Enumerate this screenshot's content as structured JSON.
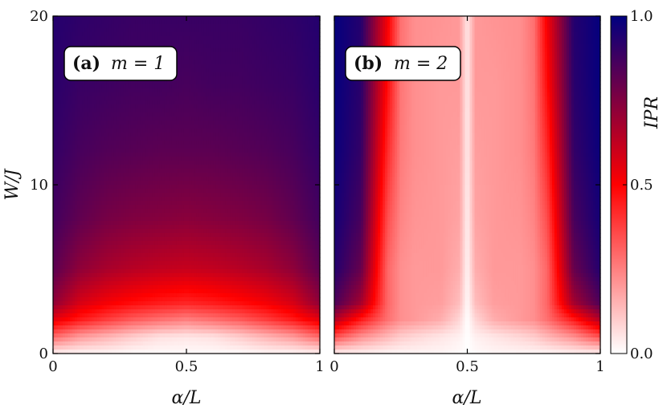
{
  "chart_data": [
    {
      "type": "heatmap",
      "panel_label": "(a)",
      "panel_title": "m = 1",
      "xlabel": "α/L",
      "ylabel": "W/J",
      "xlim": [
        0,
        1
      ],
      "ylim": [
        0,
        20
      ],
      "x_ticks": [
        "0",
        "0.5",
        "1"
      ],
      "y_ticks": [
        "0",
        "10",
        "20"
      ],
      "grid": false,
      "x": [
        0,
        0.1,
        0.2,
        0.3,
        0.4,
        0.5,
        0.6,
        0.7,
        0.8,
        0.9,
        1.0
      ],
      "y": [
        0,
        1,
        2,
        3,
        5,
        8,
        12,
        16,
        20
      ],
      "z": [
        [
          0.03,
          0.02,
          0.02,
          0.01,
          0.01,
          0.01,
          0.01,
          0.01,
          0.02,
          0.02,
          0.03
        ],
        [
          0.3,
          0.2,
          0.15,
          0.1,
          0.06,
          0.05,
          0.06,
          0.1,
          0.15,
          0.2,
          0.3
        ],
        [
          0.55,
          0.45,
          0.38,
          0.32,
          0.28,
          0.25,
          0.28,
          0.32,
          0.38,
          0.45,
          0.55
        ],
        [
          0.72,
          0.58,
          0.52,
          0.48,
          0.45,
          0.43,
          0.45,
          0.48,
          0.52,
          0.58,
          0.72
        ],
        [
          0.82,
          0.72,
          0.67,
          0.64,
          0.62,
          0.61,
          0.62,
          0.64,
          0.67,
          0.72,
          0.82
        ],
        [
          0.87,
          0.81,
          0.77,
          0.75,
          0.74,
          0.73,
          0.74,
          0.75,
          0.77,
          0.81,
          0.87
        ],
        [
          0.9,
          0.86,
          0.84,
          0.83,
          0.82,
          0.82,
          0.82,
          0.83,
          0.84,
          0.86,
          0.9
        ],
        [
          0.92,
          0.89,
          0.88,
          0.87,
          0.87,
          0.86,
          0.87,
          0.87,
          0.88,
          0.89,
          0.92
        ],
        [
          0.93,
          0.91,
          0.9,
          0.89,
          0.89,
          0.89,
          0.89,
          0.89,
          0.9,
          0.91,
          0.93
        ]
      ]
    },
    {
      "type": "heatmap",
      "panel_label": "(b)",
      "panel_title": "m = 2",
      "xlabel": "α/L",
      "ylabel": "W/J",
      "xlim": [
        0,
        1
      ],
      "ylim": [
        0,
        20
      ],
      "x_ticks": [
        "0",
        "0.5",
        "1"
      ],
      "y_ticks": [
        "0",
        "10",
        "20"
      ],
      "grid": false,
      "x": [
        0,
        0.1,
        0.2,
        0.25,
        0.3,
        0.4,
        0.47,
        0.5,
        0.53,
        0.6,
        0.7,
        0.75,
        0.8,
        0.9,
        1.0
      ],
      "y": [
        0,
        1,
        2,
        3,
        5,
        8,
        12,
        16,
        20
      ],
      "z": [
        [
          0.03,
          0.03,
          0.02,
          0.02,
          0.02,
          0.02,
          0.01,
          0.0,
          0.01,
          0.02,
          0.02,
          0.02,
          0.02,
          0.03,
          0.03
        ],
        [
          0.35,
          0.22,
          0.14,
          0.1,
          0.08,
          0.05,
          0.03,
          0.0,
          0.03,
          0.05,
          0.08,
          0.1,
          0.14,
          0.22,
          0.35
        ],
        [
          0.65,
          0.45,
          0.28,
          0.22,
          0.2,
          0.16,
          0.08,
          0.0,
          0.08,
          0.16,
          0.2,
          0.22,
          0.28,
          0.45,
          0.65
        ],
        [
          0.85,
          0.68,
          0.3,
          0.22,
          0.2,
          0.19,
          0.13,
          0.01,
          0.13,
          0.19,
          0.2,
          0.22,
          0.3,
          0.68,
          0.85
        ],
        [
          0.93,
          0.8,
          0.3,
          0.22,
          0.2,
          0.2,
          0.16,
          0.02,
          0.16,
          0.2,
          0.2,
          0.22,
          0.3,
          0.8,
          0.93
        ],
        [
          0.96,
          0.86,
          0.35,
          0.24,
          0.21,
          0.2,
          0.18,
          0.03,
          0.18,
          0.2,
          0.21,
          0.24,
          0.35,
          0.86,
          0.96
        ],
        [
          0.98,
          0.9,
          0.42,
          0.26,
          0.22,
          0.2,
          0.19,
          0.04,
          0.19,
          0.2,
          0.22,
          0.26,
          0.42,
          0.9,
          0.98
        ],
        [
          0.99,
          0.92,
          0.48,
          0.27,
          0.22,
          0.2,
          0.2,
          0.04,
          0.2,
          0.2,
          0.22,
          0.27,
          0.48,
          0.92,
          0.99
        ],
        [
          0.99,
          0.93,
          0.52,
          0.28,
          0.22,
          0.21,
          0.2,
          0.05,
          0.2,
          0.21,
          0.22,
          0.28,
          0.52,
          0.93,
          0.99
        ]
      ]
    }
  ],
  "colorbar": {
    "label": "IPR",
    "min": 0.0,
    "max": 1.0,
    "ticks": [
      "0.0",
      "0.5",
      "1.0"
    ],
    "colormap_stops": [
      "#ffffff",
      "#ff0000",
      "#000080"
    ]
  }
}
